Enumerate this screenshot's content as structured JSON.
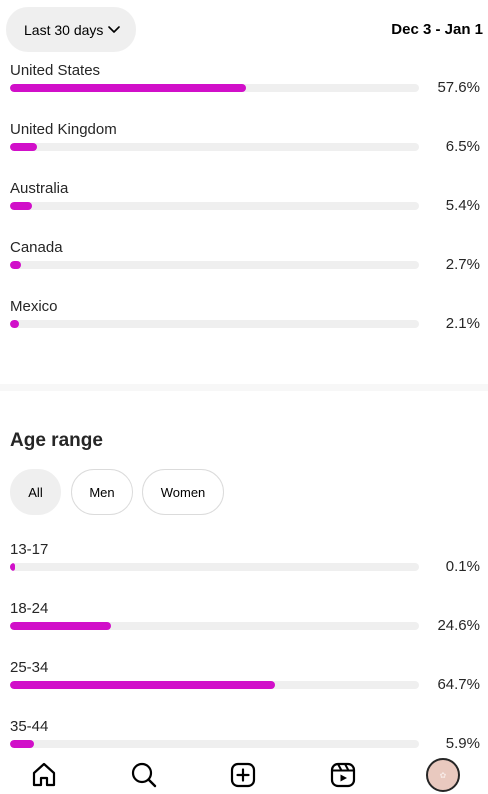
{
  "header": {
    "range_label": "Last 30 days",
    "date_range": "Dec 3 - Jan 1"
  },
  "countries": [
    {
      "label": "United States",
      "percent_text": "57.6%",
      "value": 57.6
    },
    {
      "label": "United Kingdom",
      "percent_text": "6.5%",
      "value": 6.5
    },
    {
      "label": "Australia",
      "percent_text": "5.4%",
      "value": 5.4
    },
    {
      "label": "Canada",
      "percent_text": "2.7%",
      "value": 2.7
    },
    {
      "label": "Mexico",
      "percent_text": "2.1%",
      "value": 2.1
    }
  ],
  "age_section": {
    "title": "Age range",
    "filters": [
      "All",
      "Men",
      "Women"
    ],
    "selected_filter": "All",
    "rows": [
      {
        "label": "13-17",
        "percent_text": "0.1%",
        "value": 0.1
      },
      {
        "label": "18-24",
        "percent_text": "24.6%",
        "value": 24.6
      },
      {
        "label": "25-34",
        "percent_text": "64.7%",
        "value": 64.7
      },
      {
        "label": "35-44",
        "percent_text": "5.9%",
        "value": 5.9
      }
    ]
  },
  "colors": {
    "bar_fill": "#d10fc9",
    "bar_track": "#efefef"
  },
  "bottom_nav": {
    "icons": [
      "home-icon",
      "search-icon",
      "create-icon",
      "reels-icon",
      "profile-avatar"
    ]
  }
}
